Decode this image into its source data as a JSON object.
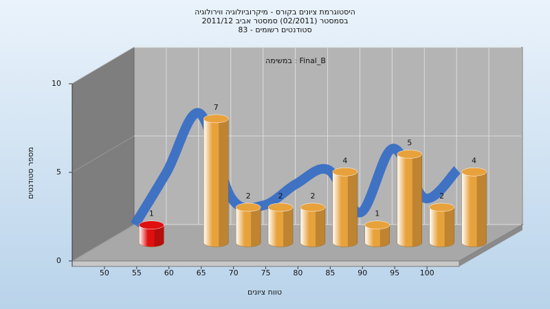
{
  "chart_data": {
    "type": "bar3d",
    "title": [
      "היסטוגרמת ציונים בקורס - מיקרוביולוגיה ווירולוגיה",
      "בסמסטר (02/2011)  סמסטר אביב 2011/12",
      "סטודנטים רשומים - 83"
    ],
    "annotation": "במשימה : Final_B",
    "x_label": "טווח ציונים",
    "y_label": "מספר סטודנטים",
    "x": [
      52.5,
      62.5,
      67.5,
      72.5,
      77.5,
      82.5,
      87.5,
      92.5,
      97.5,
      102.5
    ],
    "values": [
      1,
      7,
      2,
      2,
      2,
      4,
      1,
      5,
      2,
      4
    ],
    "colors": [
      "#e01010",
      "#e8a23c",
      "#e8a23c",
      "#e8a23c",
      "#e8a23c",
      "#e8a23c",
      "#e8a23c",
      "#e8a23c",
      "#e8a23c",
      "#e8a23c"
    ],
    "curve": {
      "color": "#3a6fc4",
      "x": [
        47.5,
        52.5,
        57.5,
        62.5,
        67.5,
        72.5,
        77.5,
        82.5,
        87.5,
        92.5,
        97.5
      ],
      "values": [
        0.5,
        3.5,
        6.8,
        2,
        1.6,
        2.8,
        3.6,
        1.2,
        4.8,
        2,
        3.6
      ]
    },
    "xlim": [
      45,
      105
    ],
    "xticks": [
      50,
      55,
      60,
      65,
      70,
      75,
      80,
      85,
      90,
      95,
      100
    ],
    "ylim": [
      0,
      10
    ],
    "yticks": [
      0,
      5,
      10
    ],
    "grid": true
  }
}
